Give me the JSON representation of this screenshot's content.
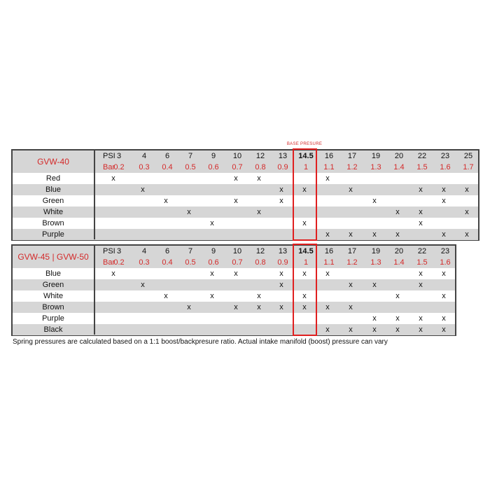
{
  "base_label": "BASE PRESURE",
  "footnote": "Spring pressures are calculated based on a 1:1 boost/backpresure ratio. Actual intake manifold (boost) pressure can vary",
  "colors": {
    "accent": "#d42a2a",
    "row_gray": "#d6d6d6"
  },
  "tables": [
    {
      "title": "GVW-40",
      "psi_label": "PSI",
      "bar_label": "Bar",
      "psi": [
        "3",
        "4",
        "6",
        "7",
        "9",
        "10",
        "12",
        "13",
        "14.5",
        "16",
        "17",
        "19",
        "20",
        "22",
        "23",
        "25"
      ],
      "bar": [
        "0.2",
        "0.3",
        "0.4",
        "0.5",
        "0.6",
        "0.7",
        "0.8",
        "0.9",
        "1",
        "1.1",
        "1.2",
        "1.3",
        "1.4",
        "1.5",
        "1.6",
        "1.7"
      ],
      "rows": [
        {
          "label": "Red",
          "marks": [
            "x",
            "",
            "",
            "",
            "",
            "x",
            "x",
            "",
            "",
            "x",
            "",
            "",
            "",
            "",
            "",
            ""
          ]
        },
        {
          "label": "Blue",
          "marks": [
            "",
            "x",
            "",
            "",
            "",
            "",
            "",
            "x",
            "x",
            "",
            "x",
            "",
            "",
            "x",
            "x",
            "x"
          ]
        },
        {
          "label": "Green",
          "marks": [
            "",
            "",
            "x",
            "",
            "",
            "x",
            "",
            "x",
            "",
            "",
            "",
            "x",
            "",
            "",
            "x",
            ""
          ]
        },
        {
          "label": "White",
          "marks": [
            "",
            "",
            "",
            "x",
            "",
            "",
            "x",
            "",
            "",
            "",
            "",
            "",
            "x",
            "x",
            "",
            "x"
          ]
        },
        {
          "label": "Brown",
          "marks": [
            "",
            "",
            "",
            "",
            "x",
            "",
            "",
            "",
            "x",
            "",
            "",
            "",
            "",
            "x",
            "",
            ""
          ]
        },
        {
          "label": "Purple",
          "marks": [
            "",
            "",
            "",
            "",
            "",
            "",
            "",
            "",
            "",
            "x",
            "x",
            "x",
            "x",
            "",
            "x",
            "x"
          ]
        }
      ]
    },
    {
      "title": "GVW-45 | GVW-50",
      "psi_label": "PSI",
      "bar_label": "Bar",
      "psi": [
        "3",
        "4",
        "6",
        "7",
        "9",
        "10",
        "12",
        "13",
        "14.5",
        "16",
        "17",
        "19",
        "20",
        "22",
        "23"
      ],
      "bar": [
        "0.2",
        "0.3",
        "0.4",
        "0.5",
        "0.6",
        "0.7",
        "0.8",
        "0.9",
        "1",
        "1.1",
        "1.2",
        "1.3",
        "1.4",
        "1.5",
        "1.6"
      ],
      "rows": [
        {
          "label": "Blue",
          "marks": [
            "x",
            "",
            "",
            "",
            "x",
            "x",
            "",
            "x",
            "x",
            "x",
            "",
            "",
            "",
            "x",
            "x"
          ]
        },
        {
          "label": "Green",
          "marks": [
            "",
            "x",
            "",
            "",
            "",
            "",
            "",
            "x",
            "",
            "",
            "x",
            "x",
            "",
            "x",
            ""
          ]
        },
        {
          "label": "White",
          "marks": [
            "",
            "",
            "x",
            "",
            "x",
            "",
            "x",
            "",
            "x",
            "",
            "",
            "",
            "x",
            "",
            "x"
          ]
        },
        {
          "label": "Brown",
          "marks": [
            "",
            "",
            "",
            "x",
            "",
            "x",
            "x",
            "x",
            "x",
            "x",
            "x",
            "",
            "",
            "",
            ""
          ]
        },
        {
          "label": "Purple",
          "marks": [
            "",
            "",
            "",
            "",
            "",
            "",
            "",
            "",
            "",
            "",
            "",
            "x",
            "x",
            "x",
            "x"
          ]
        },
        {
          "label": "Black",
          "marks": [
            "",
            "",
            "",
            "",
            "",
            "",
            "",
            "",
            "",
            "x",
            "x",
            "x",
            "x",
            "x",
            "x"
          ]
        }
      ]
    }
  ]
}
